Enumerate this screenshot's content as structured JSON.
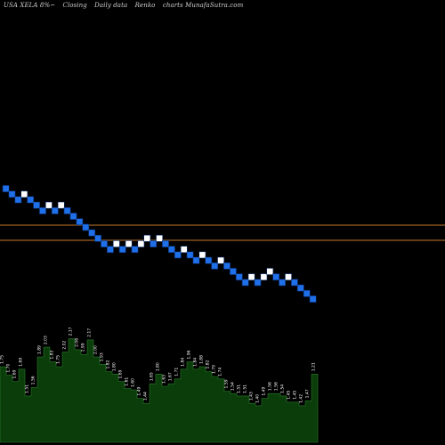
{
  "header": {
    "ticker": "USA XELA 8%~",
    "parts": [
      "Closing",
      "Daily data",
      "Renko",
      "charts MunafaSutra.com"
    ]
  },
  "colors": {
    "background": "#000000",
    "up_brick": "#ffffff",
    "down_brick": "#1e6fe8",
    "brick_edge": "#0a2a66",
    "level_line": "#c8782a",
    "volume_fill": "#0b3d0b",
    "volume_edge": "#2a7a2a",
    "label_text": "#ffffff"
  },
  "chart_data": {
    "type": "renko",
    "bricks": [
      "down",
      "down",
      "down",
      "up",
      "down",
      "down",
      "down",
      "up",
      "down",
      "up",
      "down",
      "down",
      "down",
      "down",
      "down",
      "down",
      "down",
      "down",
      "up",
      "down",
      "up",
      "down",
      "up",
      "up",
      "down",
      "up",
      "down",
      "down",
      "down",
      "up",
      "down",
      "down",
      "up",
      "down",
      "down",
      "up",
      "down",
      "down",
      "down",
      "down",
      "up",
      "down",
      "up",
      "up",
      "down",
      "down",
      "up",
      "down",
      "down",
      "down",
      "down"
    ],
    "level_lines": [
      {
        "label": "upper"
      },
      {
        "label": "lower"
      }
    ],
    "volume_labels": [
      "1.75",
      "1.70",
      "1.69",
      "1.69",
      "1.51",
      "1.56",
      "1.89",
      "2.03",
      "1.83",
      "1.75",
      "2.02",
      "2.17",
      "2.06",
      "1.99",
      "2.17",
      "2.00",
      "1.93",
      "1.82",
      "1.80",
      "1.69",
      "1.61",
      "1.60",
      "1.49",
      "1.44",
      "1.65",
      "1.80",
      "1.63",
      "1.67",
      "1.71",
      "1.84",
      "1.96",
      "1.84",
      "1.88",
      "1.82",
      "1.79",
      "1.74",
      "1.59",
      "1.54",
      "1.51",
      "1.51",
      "1.43",
      "1.40",
      "1.49",
      "1.56",
      "1.56",
      "1.54",
      "1.45",
      "1.45",
      "1.42",
      "1.47",
      "1.21"
    ],
    "volume_values": [
      0.62,
      0.55,
      0.5,
      0.6,
      0.38,
      0.45,
      0.7,
      0.78,
      0.66,
      0.62,
      0.74,
      0.85,
      0.76,
      0.72,
      0.84,
      0.7,
      0.64,
      0.58,
      0.56,
      0.5,
      0.44,
      0.43,
      0.36,
      0.32,
      0.48,
      0.56,
      0.46,
      0.48,
      0.52,
      0.6,
      0.66,
      0.6,
      0.62,
      0.58,
      0.54,
      0.52,
      0.42,
      0.4,
      0.38,
      0.38,
      0.32,
      0.3,
      0.36,
      0.4,
      0.4,
      0.38,
      0.33,
      0.33,
      0.3,
      0.34,
      0.56
    ]
  }
}
